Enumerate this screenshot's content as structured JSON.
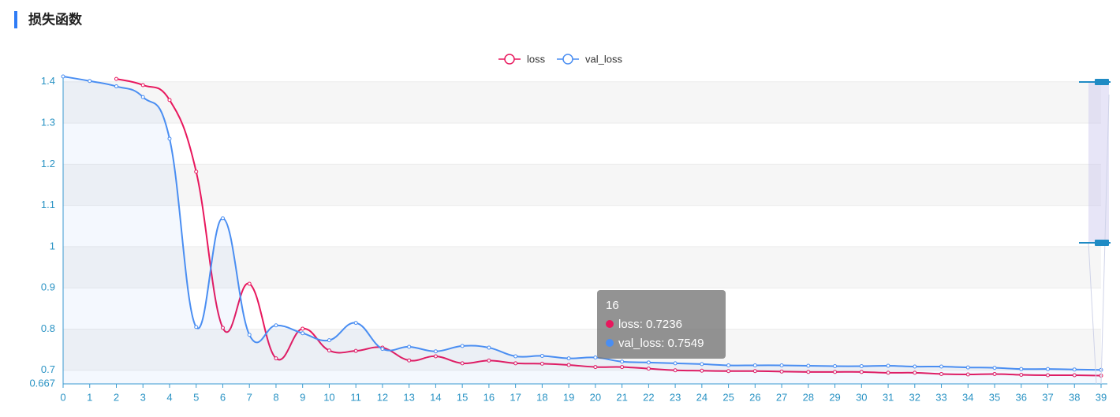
{
  "chart_data": {
    "type": "line",
    "title": "损失函数",
    "categories": [
      "0",
      "1",
      "2",
      "3",
      "4",
      "5",
      "6",
      "7",
      "8",
      "9",
      "10",
      "11",
      "12",
      "13",
      "14",
      "15",
      "16",
      "17",
      "18",
      "19",
      "20",
      "21",
      "22",
      "23",
      "24",
      "25",
      "26",
      "27",
      "28",
      "29",
      "30",
      "31",
      "32",
      "33",
      "34",
      "35",
      "36",
      "37",
      "38",
      "39"
    ],
    "series": [
      {
        "name": "loss",
        "color": "#e8175d",
        "values": [
          null,
          null,
          1.407,
          1.392,
          1.356,
          1.182,
          0.803,
          0.91,
          0.729,
          0.801,
          0.748,
          0.747,
          0.755,
          0.724,
          0.734,
          0.717,
          0.7236,
          0.717,
          0.716,
          0.713,
          0.708,
          0.708,
          0.704,
          0.7,
          0.699,
          0.698,
          0.698,
          0.697,
          0.696,
          0.696,
          0.696,
          0.694,
          0.694,
          0.691,
          0.69,
          0.691,
          0.689,
          0.688,
          0.688,
          0.687
        ]
      },
      {
        "name": "val_loss",
        "color": "#4a8ef2",
        "area": true,
        "values": [
          1.413,
          1.402,
          1.389,
          1.363,
          1.262,
          0.805,
          1.069,
          0.786,
          0.809,
          0.79,
          0.773,
          0.815,
          0.752,
          0.757,
          0.746,
          0.759,
          0.7549,
          0.734,
          0.735,
          0.729,
          0.731,
          0.721,
          0.719,
          0.717,
          0.715,
          0.712,
          0.712,
          0.712,
          0.711,
          0.71,
          0.71,
          0.711,
          0.709,
          0.709,
          0.707,
          0.706,
          0.703,
          0.703,
          0.702,
          0.701
        ]
      }
    ],
    "ylim": [
      0.667,
      1.413
    ],
    "yticks": [
      0.667,
      0.7,
      0.8,
      0.9,
      1,
      1.1,
      1.2,
      1.3,
      1.4
    ],
    "split_area": true
  }
}
